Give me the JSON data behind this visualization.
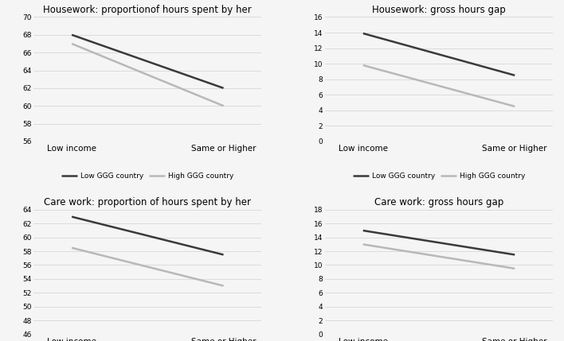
{
  "panels": [
    {
      "title": "Housework: proportionof hours spent by her",
      "x_labels": [
        "Low income",
        "Same or Higher"
      ],
      "low_ggg": [
        68,
        62
      ],
      "high_ggg": [
        67,
        60
      ],
      "ylim": [
        56,
        70
      ],
      "yticks": [
        56,
        58,
        60,
        62,
        64,
        66,
        68,
        70
      ]
    },
    {
      "title": "Housework: gross hours gap",
      "x_labels": [
        "Low income",
        "Same or Higher"
      ],
      "low_ggg": [
        13.9,
        8.5
      ],
      "high_ggg": [
        9.8,
        4.5
      ],
      "ylim": [
        0,
        16
      ],
      "yticks": [
        0,
        2,
        4,
        6,
        8,
        10,
        12,
        14,
        16
      ]
    },
    {
      "title": "Care work: proportion of hours spent by her",
      "x_labels": [
        "Low income",
        "Same or Higher"
      ],
      "low_ggg": [
        63,
        57.5
      ],
      "high_ggg": [
        58.5,
        53
      ],
      "ylim": [
        46,
        64
      ],
      "yticks": [
        46,
        48,
        50,
        52,
        54,
        56,
        58,
        60,
        62,
        64
      ]
    },
    {
      "title": "Care work: gross hours gap",
      "x_labels": [
        "Low income",
        "Same or Higher"
      ],
      "low_ggg": [
        15,
        11.5
      ],
      "high_ggg": [
        13,
        9.5
      ],
      "ylim": [
        0,
        18
      ],
      "yticks": [
        0,
        2,
        4,
        6,
        8,
        10,
        12,
        14,
        16,
        18
      ]
    }
  ],
  "low_ggg_color": "#3a3a3a",
  "high_ggg_color": "#b8b8b8",
  "low_ggg_label": "Low GGG country",
  "high_ggg_label": "High GGG country",
  "line_width": 1.8,
  "bg_color": "#f5f5f5",
  "grid_color": "#d0d0d0",
  "tick_fontsize": 6.5,
  "title_fontsize": 8.5,
  "legend_fontsize": 6.5,
  "xlabel_fontsize": 7.5
}
